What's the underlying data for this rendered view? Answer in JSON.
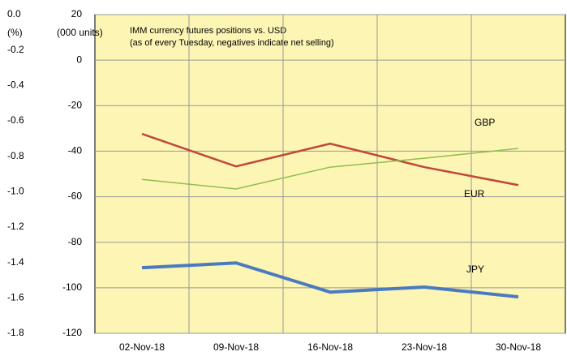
{
  "chart_data": {
    "type": "line",
    "title": "IMM  currency futures positions vs. USD",
    "subtitle": "(as of every Tuesday, negatives indicate net selling)",
    "y_label": "(000  units)",
    "y2_label": "(%)",
    "categories": [
      "02-Nov-18",
      "09-Nov-18",
      "16-Nov-18",
      "23-Nov-18",
      "30-Nov-18"
    ],
    "series": [
      {
        "name": "EUR",
        "color": "#c0473a",
        "values": [
          -32.4,
          -46.7,
          -36.7,
          -47.0,
          -54.9
        ]
      },
      {
        "name": "GBP",
        "color": "#8fbd50",
        "values": [
          -52.4,
          -56.6,
          -47.0,
          -43.1,
          -38.8
        ]
      },
      {
        "name": "JPY",
        "color": "#4a7bc0",
        "values": [
          -91.2,
          -89.1,
          -101.9,
          -99.7,
          -104.0
        ]
      }
    ],
    "ylim": [
      -120,
      20
    ],
    "yticks": [
      20,
      0,
      -20,
      -40,
      -60,
      -80,
      -100,
      -120
    ],
    "y2lim": [
      -1.8,
      0
    ],
    "y2ticks": [
      {
        "value": 0,
        "label": "0.0"
      },
      -0.2,
      -0.4,
      -0.6,
      -0.8,
      {
        "value": -1,
        "label": "-1.0"
      },
      -1.2,
      -1.4,
      -1.6,
      -1.8
    ],
    "grid": true,
    "background": "#fdf5b4"
  }
}
